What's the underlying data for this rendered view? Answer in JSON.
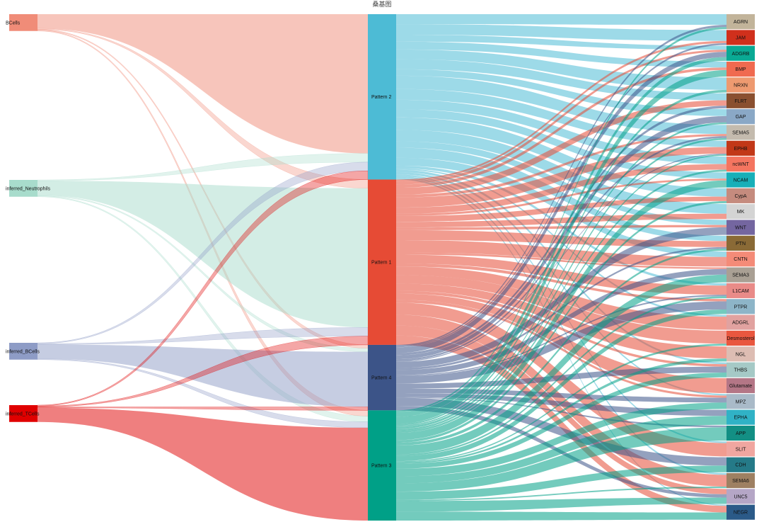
{
  "title": "桑基图",
  "chart_data": {
    "type": "sankey",
    "left_nodes": [
      {
        "name": "BCells",
        "color": "#F08C78",
        "to": [
          [
            0,
            8
          ],
          [
            1,
            0.5
          ],
          [
            2,
            0.5
          ],
          [
            3,
            0.5
          ]
        ]
      },
      {
        "name": "inferred_Neutrophils",
        "color": "#A8DCCC",
        "to": [
          [
            0,
            0.5
          ],
          [
            1,
            8
          ],
          [
            2,
            0.5
          ],
          [
            3,
            0.5
          ]
        ]
      },
      {
        "name": "inferred_BCells",
        "color": "#8E9CC6",
        "to": [
          [
            0,
            0.5
          ],
          [
            1,
            0.5
          ],
          [
            2,
            8
          ],
          [
            3,
            0.5
          ]
        ]
      },
      {
        "name": "inferred_TCells",
        "color": "#E00000",
        "to": [
          [
            0,
            0.5
          ],
          [
            1,
            0.5
          ],
          [
            2,
            0.5
          ],
          [
            3,
            8
          ]
        ]
      }
    ],
    "patterns": [
      {
        "name": "Pattern 2",
        "color": "#4DBBD5",
        "weight": 24
      },
      {
        "name": "Pattern 1",
        "color": "#E64B35",
        "weight": 24
      },
      {
        "name": "Pattern 4",
        "color": "#3C5488",
        "weight": 9.5
      },
      {
        "name": "Pattern 3",
        "color": "#00A087",
        "weight": 16
      }
    ],
    "pathways": [
      {
        "name": "AGRN",
        "color": "#C2B49A"
      },
      {
        "name": "JAM",
        "color": "#D0301C"
      },
      {
        "name": "ADGRB",
        "color": "#0AA994"
      },
      {
        "name": "BMP",
        "color": "#F06A50"
      },
      {
        "name": "NRXN",
        "color": "#EE9A70"
      },
      {
        "name": "FLRT",
        "color": "#8A5030"
      },
      {
        "name": "GAP",
        "color": "#8AA8C6"
      },
      {
        "name": "SEMA5",
        "color": "#C4BBAE"
      },
      {
        "name": "EPHB",
        "color": "#C23818"
      },
      {
        "name": "ncWNT",
        "color": "#F47560"
      },
      {
        "name": "NCAM",
        "color": "#18AFB8"
      },
      {
        "name": "CypA",
        "color": "#C58B7E"
      },
      {
        "name": "MK",
        "color": "#D4D4D4"
      },
      {
        "name": "WNT",
        "color": "#7466A0"
      },
      {
        "name": "PTN",
        "color": "#8A6A36"
      },
      {
        "name": "CNTN",
        "color": "#F48B78"
      },
      {
        "name": "SEMA3",
        "color": "#A9A094"
      },
      {
        "name": "L1CAM",
        "color": "#E98B88"
      },
      {
        "name": "PTPR",
        "color": "#8DB5C8"
      },
      {
        "name": "ADGRL",
        "color": "#E1A2A0"
      },
      {
        "name": "Desmosterol",
        "color": "#E9573F"
      },
      {
        "name": "NGL",
        "color": "#DDBDB3"
      },
      {
        "name": "THBS",
        "color": "#A5C9C6"
      },
      {
        "name": "Glutamate",
        "color": "#B47686"
      },
      {
        "name": "MPZ",
        "color": "#A9BAC8"
      },
      {
        "name": "EPHA",
        "color": "#30B2C6"
      },
      {
        "name": "APP",
        "color": "#138F84"
      },
      {
        "name": "SLIT",
        "color": "#F0A6A0"
      },
      {
        "name": "CDH",
        "color": "#257A88"
      },
      {
        "name": "SEMA6",
        "color": "#9E8062"
      },
      {
        "name": "UNC5",
        "color": "#B5A6C6"
      },
      {
        "name": "NEGR",
        "color": "#2B5A88"
      }
    ]
  }
}
